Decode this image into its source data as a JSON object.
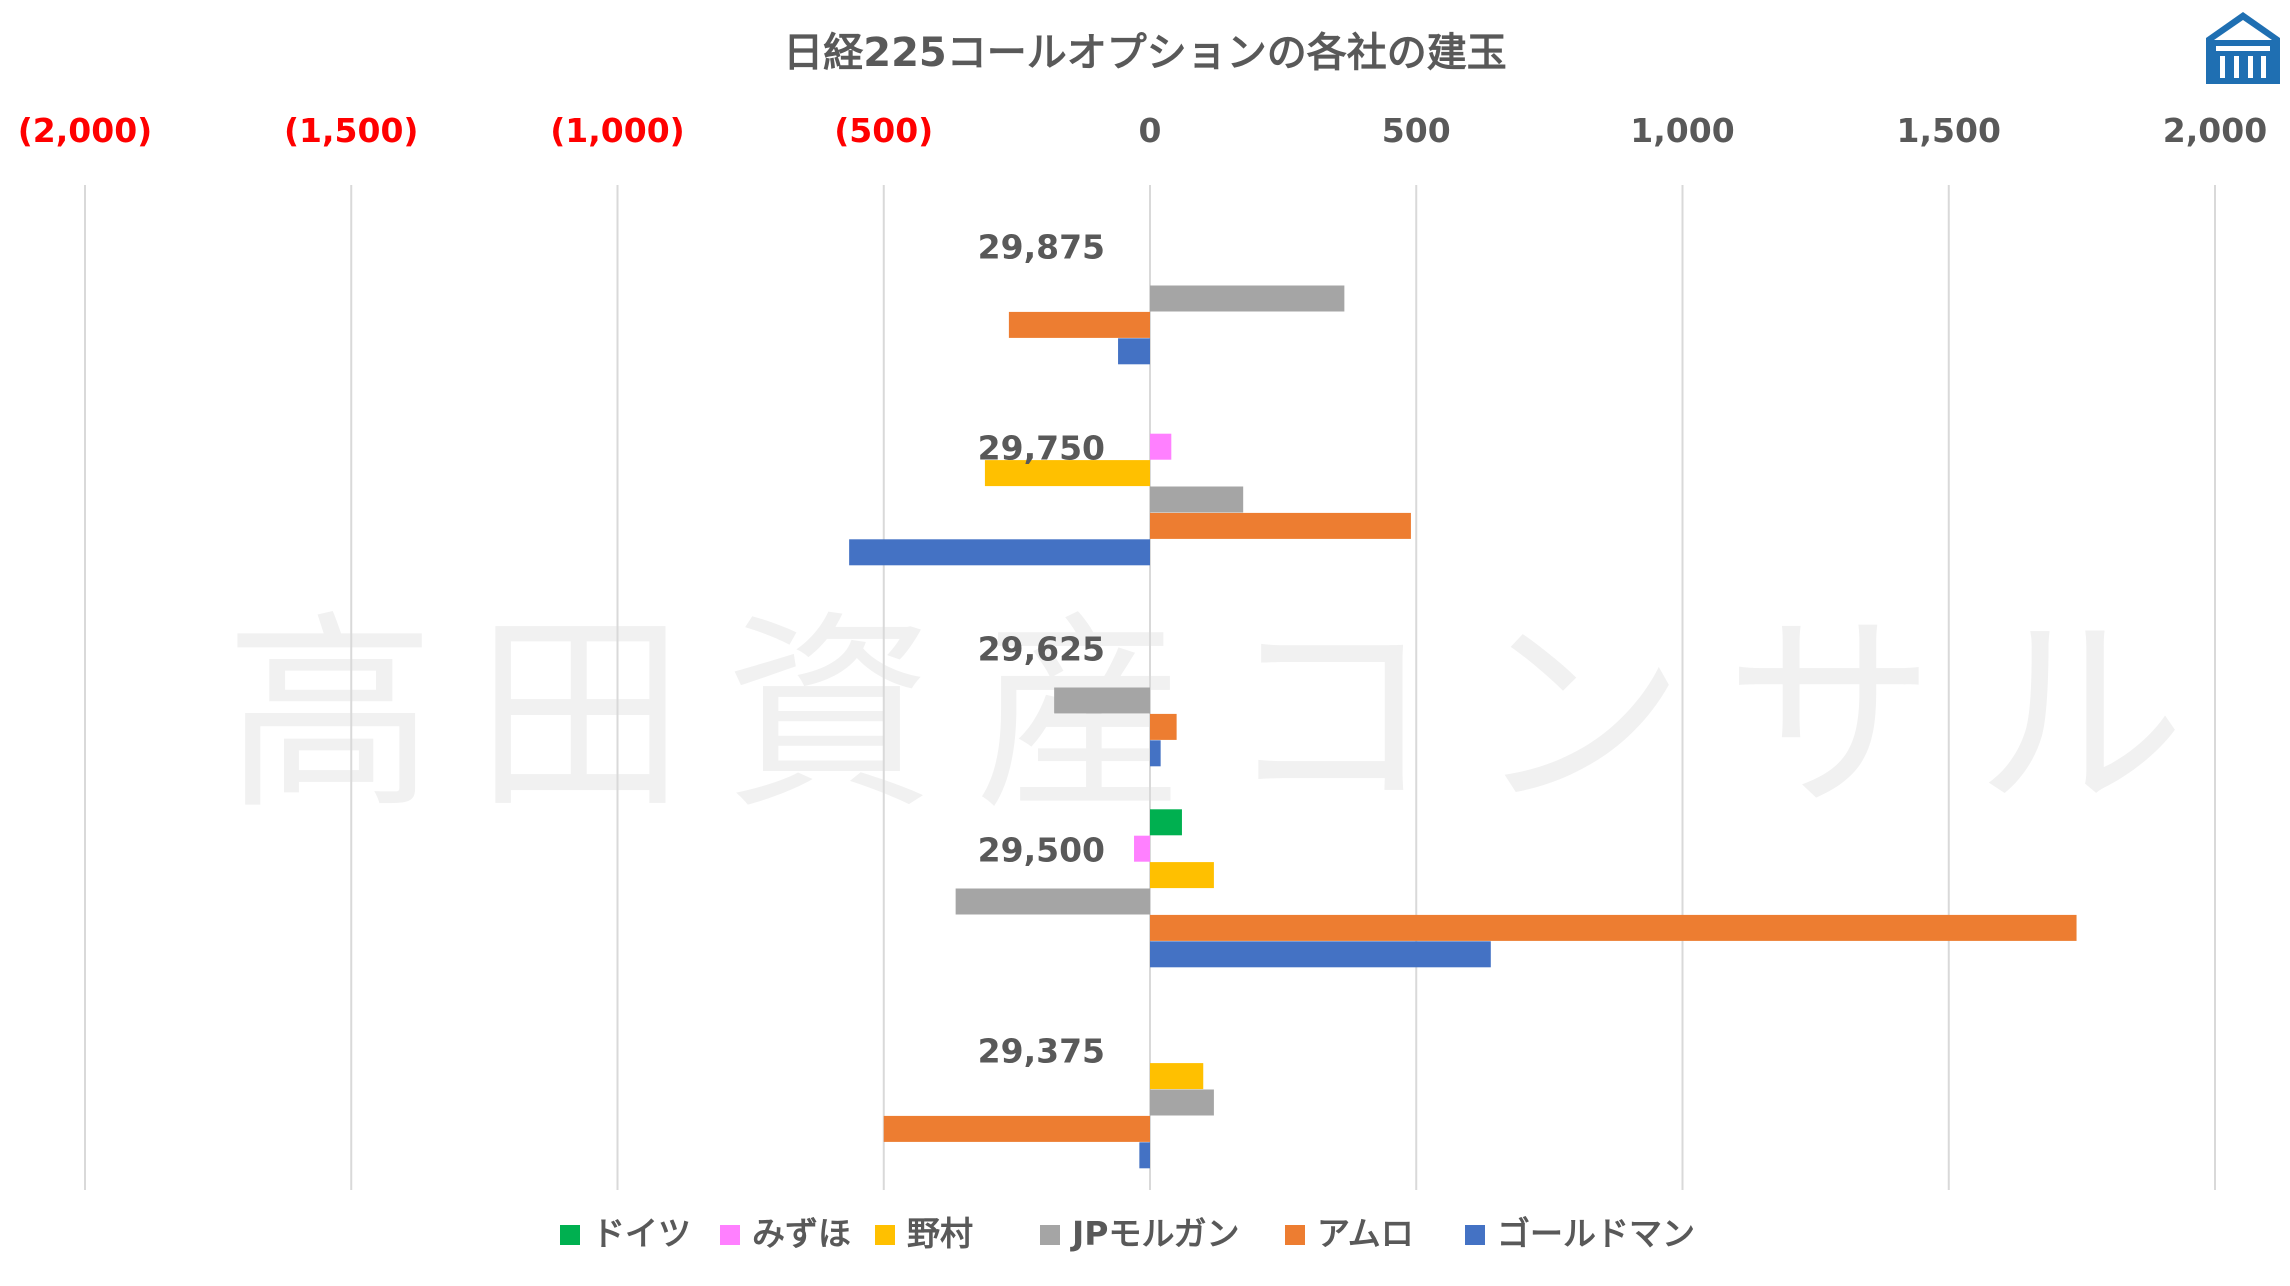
{
  "chart_data": {
    "type": "bar",
    "orientation": "horizontal",
    "title": "日経225コールオプションの各社の建玉",
    "categories": [
      "29,875",
      "29,750",
      "29,625",
      "29,500",
      "29,375"
    ],
    "xlim": [
      -2000,
      2000
    ],
    "x_ticks": [
      -2000,
      -1500,
      -1000,
      -500,
      0,
      500,
      1000,
      1500,
      2000
    ],
    "x_tick_labels": [
      "(2,000)",
      "(1,500)",
      "(1,000)",
      "(500)",
      "0",
      "500",
      "1,000",
      "1,500",
      "2,000"
    ],
    "negative_tick_color": "#FF0000",
    "positive_tick_color": "#595959",
    "grid": true,
    "legend_position": "bottom",
    "series": [
      {
        "name": "ドイツ",
        "color": "#00B050",
        "values": [
          0,
          0,
          0,
          60,
          0
        ]
      },
      {
        "name": "みずほ",
        "color": "#FF80FF",
        "values": [
          0,
          40,
          0,
          -30,
          0
        ]
      },
      {
        "name": "野村",
        "color": "#FFC000",
        "values": [
          0,
          -310,
          0,
          120,
          100
        ]
      },
      {
        "name": "JPモルガン",
        "color": "#A5A5A5",
        "values": [
          365,
          175,
          -180,
          -365,
          120
        ]
      },
      {
        "name": "アムロ",
        "color": "#ED7D31",
        "values": [
          -265,
          490,
          50,
          1740,
          -500
        ]
      },
      {
        "name": "ゴールドマン",
        "color": "#4472C4",
        "values": [
          -60,
          -565,
          20,
          640,
          -20
        ]
      }
    ]
  },
  "watermark": "高田資産コンサル",
  "colors": {
    "grid": "#D9D9D9",
    "text": "#595959",
    "logo": "#1F6FB2"
  }
}
